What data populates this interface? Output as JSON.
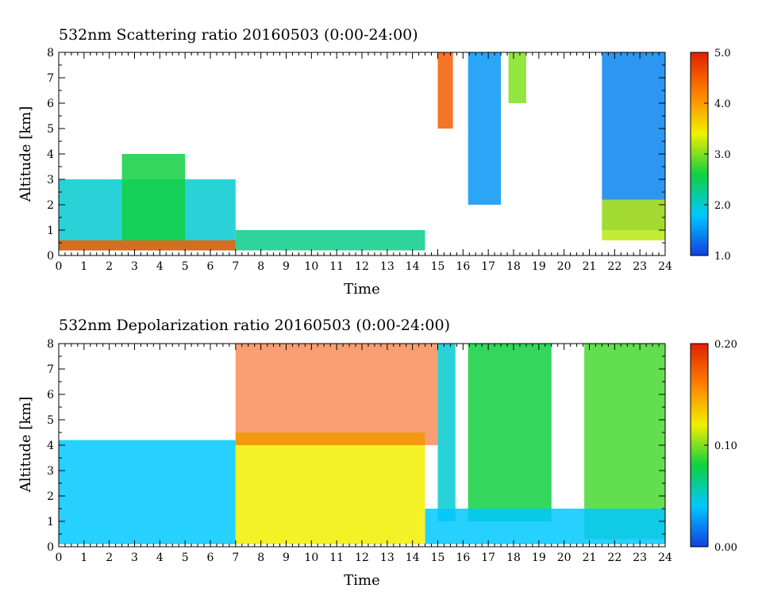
{
  "chart_data": [
    {
      "type": "heatmap",
      "title": "532nm Scattering ratio  20160503 (0:00-24:00)",
      "xlabel": "Time",
      "ylabel": "Altitude [km]",
      "xlim": [
        0,
        24
      ],
      "ylim": [
        0,
        8
      ],
      "xticks": [
        "0",
        "1",
        "2",
        "3",
        "4",
        "5",
        "6",
        "7",
        "8",
        "9",
        "10",
        "11",
        "12",
        "13",
        "14",
        "15",
        "16",
        "17",
        "18",
        "19",
        "20",
        "21",
        "22",
        "23",
        "24"
      ],
      "yticks": [
        "0",
        "1",
        "2",
        "3",
        "4",
        "5",
        "6",
        "7",
        "8"
      ],
      "colorbar": {
        "range": [
          1.0,
          5.0
        ],
        "ticks": [
          "1.0",
          "2.0",
          "3.0",
          "4.0",
          "5.0"
        ]
      },
      "colorscale": [
        "#1040e0",
        "#00c8ff",
        "#10d040",
        "#f0f000",
        "#ff8000",
        "#e02000"
      ],
      "features": [
        {
          "kind": "aerosol_layer",
          "t_start": 0,
          "t_end": 7,
          "alt_base": 0.2,
          "alt_top": 3.0,
          "value": 2.0
        },
        {
          "kind": "surface_layer",
          "t_start": 0,
          "t_end": 7,
          "alt_base": 0.2,
          "alt_top": 0.6,
          "value": 4.5
        },
        {
          "kind": "elevated_aerosol",
          "t_start": 2.5,
          "t_end": 5.0,
          "alt_base": 0.6,
          "alt_top": 4.0,
          "value": 2.6
        },
        {
          "kind": "boundary_layer",
          "t_start": 7,
          "t_end": 14.5,
          "alt_base": 0.2,
          "alt_top": 1.0,
          "value": 2.3
        },
        {
          "kind": "cirrus",
          "t_start": 15.0,
          "t_end": 15.6,
          "alt_base": 5.0,
          "alt_top": 8.0,
          "value": 4.5
        },
        {
          "kind": "cirrus",
          "t_start": 16.2,
          "t_end": 17.5,
          "alt_base": 2.0,
          "alt_top": 8.0,
          "value": 1.5
        },
        {
          "kind": "cirrus",
          "t_start": 17.8,
          "t_end": 18.5,
          "alt_base": 6.0,
          "alt_top": 8.0,
          "value": 3.0
        },
        {
          "kind": "cirrus",
          "t_start": 21.5,
          "t_end": 24.0,
          "alt_base": 1.0,
          "alt_top": 8.0,
          "value": 1.4
        },
        {
          "kind": "boundary_layer",
          "t_start": 21.5,
          "t_end": 24.0,
          "alt_base": 0.6,
          "alt_top": 2.2,
          "value": 3.2
        }
      ]
    },
    {
      "type": "heatmap",
      "title": "532nm Depolarization ratio  20160503 (0:00-24:00)",
      "xlabel": "Time",
      "ylabel": "Altitude [km]",
      "xlim": [
        0,
        24
      ],
      "ylim": [
        0,
        8
      ],
      "xticks": [
        "0",
        "1",
        "2",
        "3",
        "4",
        "5",
        "6",
        "7",
        "8",
        "9",
        "10",
        "11",
        "12",
        "13",
        "14",
        "15",
        "16",
        "17",
        "18",
        "19",
        "20",
        "21",
        "22",
        "23",
        "24"
      ],
      "yticks": [
        "0",
        "1",
        "2",
        "3",
        "4",
        "5",
        "6",
        "7",
        "8"
      ],
      "colorbar": {
        "range": [
          0.0,
          0.2
        ],
        "ticks": [
          "0.00",
          "0.10",
          "0.20"
        ]
      },
      "colorscale": [
        "#1040e0",
        "#00c8ff",
        "#10d040",
        "#f0f000",
        "#ff8000",
        "#e02000"
      ],
      "features": [
        {
          "kind": "aerosol_layer",
          "t_start": 0,
          "t_end": 7,
          "alt_base": 0.1,
          "alt_top": 4.2,
          "value": 0.04
        },
        {
          "kind": "dust_layer",
          "t_start": 7,
          "t_end": 14.5,
          "alt_base": 0.1,
          "alt_top": 4.5,
          "value": 0.12
        },
        {
          "kind": "noise_region",
          "t_start": 7,
          "t_end": 15,
          "alt_base": 4.0,
          "alt_top": 8.0,
          "value": 0.18
        },
        {
          "kind": "cirrus",
          "t_start": 15.0,
          "t_end": 15.7,
          "alt_base": 1.0,
          "alt_top": 8.0,
          "value": 0.05
        },
        {
          "kind": "cirrus",
          "t_start": 16.2,
          "t_end": 19.5,
          "alt_base": 1.0,
          "alt_top": 8.0,
          "value": 0.08
        },
        {
          "kind": "cirrus",
          "t_start": 20.8,
          "t_end": 24.0,
          "alt_base": 0.3,
          "alt_top": 8.0,
          "value": 0.09
        },
        {
          "kind": "low_level",
          "t_start": 14.5,
          "t_end": 24.0,
          "alt_base": 0.1,
          "alt_top": 1.5,
          "value": 0.04
        }
      ]
    }
  ]
}
